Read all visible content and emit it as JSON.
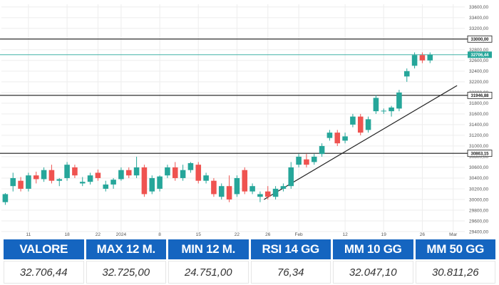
{
  "chart_data": {
    "type": "candlestick",
    "y_ticks": [
      "29400,00",
      "29600,00",
      "29800,00",
      "30000,00",
      "30200,00",
      "30400,00",
      "30600,00",
      "30800,00",
      "31000,00",
      "31200,00",
      "31400,00",
      "31600,00",
      "31800,00",
      "32000,00",
      "32200,00",
      "32400,00",
      "32600,00",
      "32800,00",
      "33000,00",
      "33200,00",
      "33400,00",
      "33600,00"
    ],
    "ylim": [
      29400,
      33650
    ],
    "x_ticks": [
      "11",
      "18",
      "22",
      "2024",
      "8",
      "15",
      "22",
      "26",
      "Feb",
      "12",
      "19",
      "26",
      "Mar"
    ],
    "x_tick_index": [
      3,
      8,
      12,
      15,
      20,
      25,
      30,
      34,
      38,
      44,
      49,
      54,
      58
    ],
    "x_count": 60,
    "levels": [
      {
        "value": 33000,
        "label": "33000,00",
        "kind": "black"
      },
      {
        "value": 32706.44,
        "label": "32706,44",
        "kind": "current"
      },
      {
        "value": 31946.88,
        "label": "31946,88",
        "kind": "black"
      },
      {
        "value": 30863.15,
        "label": "30863,15",
        "kind": "black"
      }
    ],
    "trendline": [
      {
        "i": 33.5,
        "v": 30000
      },
      {
        "i": 58.5,
        "v": 32130
      }
    ],
    "candles": [
      {
        "o": 29950,
        "h": 30120,
        "l": 29900,
        "c": 30100
      },
      {
        "o": 30250,
        "h": 30500,
        "l": 30150,
        "c": 30400
      },
      {
        "o": 30350,
        "h": 30420,
        "l": 30150,
        "c": 30200
      },
      {
        "o": 30200,
        "h": 30500,
        "l": 30150,
        "c": 30450
      },
      {
        "o": 30450,
        "h": 30520,
        "l": 30300,
        "c": 30380
      },
      {
        "o": 30380,
        "h": 30600,
        "l": 30330,
        "c": 30550
      },
      {
        "o": 30550,
        "h": 30650,
        "l": 30300,
        "c": 30350
      },
      {
        "o": 30350,
        "h": 30400,
        "l": 30250,
        "c": 30380
      },
      {
        "o": 30400,
        "h": 30700,
        "l": 30350,
        "c": 30650
      },
      {
        "o": 30600,
        "h": 30650,
        "l": 30400,
        "c": 30450
      },
      {
        "o": 30300,
        "h": 30420,
        "l": 30250,
        "c": 30330
      },
      {
        "o": 30330,
        "h": 30500,
        "l": 30280,
        "c": 30450
      },
      {
        "o": 30500,
        "h": 30560,
        "l": 30350,
        "c": 30400
      },
      {
        "o": 30200,
        "h": 30350,
        "l": 30150,
        "c": 30280
      },
      {
        "o": 30280,
        "h": 30400,
        "l": 30200,
        "c": 30370
      },
      {
        "o": 30380,
        "h": 30600,
        "l": 30350,
        "c": 30550
      },
      {
        "o": 30550,
        "h": 30600,
        "l": 30400,
        "c": 30450
      },
      {
        "o": 30450,
        "h": 30800,
        "l": 30400,
        "c": 30600
      },
      {
        "o": 30600,
        "h": 30650,
        "l": 30050,
        "c": 30100
      },
      {
        "o": 30150,
        "h": 30450,
        "l": 30100,
        "c": 30400
      },
      {
        "o": 30200,
        "h": 30450,
        "l": 30150,
        "c": 30430
      },
      {
        "o": 30450,
        "h": 30650,
        "l": 30400,
        "c": 30600
      },
      {
        "o": 30600,
        "h": 30700,
        "l": 30350,
        "c": 30400
      },
      {
        "o": 30400,
        "h": 30650,
        "l": 30350,
        "c": 30550
      },
      {
        "o": 30550,
        "h": 30700,
        "l": 30500,
        "c": 30680
      },
      {
        "o": 30650,
        "h": 30700,
        "l": 30300,
        "c": 30350
      },
      {
        "o": 30350,
        "h": 30500,
        "l": 30300,
        "c": 30450
      },
      {
        "o": 30350,
        "h": 30400,
        "l": 30050,
        "c": 30100
      },
      {
        "o": 30050,
        "h": 30300,
        "l": 30000,
        "c": 30250
      },
      {
        "o": 30250,
        "h": 30450,
        "l": 29950,
        "c": 30000
      },
      {
        "o": 30100,
        "h": 30450,
        "l": 30050,
        "c": 30400
      },
      {
        "o": 30550,
        "h": 30600,
        "l": 30100,
        "c": 30150
      },
      {
        "o": 30150,
        "h": 30300,
        "l": 30100,
        "c": 30250
      },
      {
        "o": 30050,
        "h": 30150,
        "l": 29950,
        "c": 30100
      },
      {
        "o": 30150,
        "h": 30250,
        "l": 30000,
        "c": 30050
      },
      {
        "o": 30050,
        "h": 30250,
        "l": 30000,
        "c": 30200
      },
      {
        "o": 30200,
        "h": 30300,
        "l": 30150,
        "c": 30250
      },
      {
        "o": 30250,
        "h": 30700,
        "l": 30200,
        "c": 30600
      },
      {
        "o": 30650,
        "h": 30850,
        "l": 30600,
        "c": 30800
      },
      {
        "o": 30750,
        "h": 30850,
        "l": 30600,
        "c": 30650
      },
      {
        "o": 30700,
        "h": 30850,
        "l": 30650,
        "c": 30800
      },
      {
        "o": 30850,
        "h": 31050,
        "l": 30800,
        "c": 31000
      },
      {
        "o": 31150,
        "h": 31300,
        "l": 31100,
        "c": 31250
      },
      {
        "o": 31250,
        "h": 31300,
        "l": 31000,
        "c": 31050
      },
      {
        "o": 31100,
        "h": 31250,
        "l": 31050,
        "c": 31180
      },
      {
        "o": 31400,
        "h": 31600,
        "l": 31350,
        "c": 31550
      },
      {
        "o": 31550,
        "h": 31600,
        "l": 31200,
        "c": 31250
      },
      {
        "o": 31300,
        "h": 31550,
        "l": 31250,
        "c": 31500
      },
      {
        "o": 31650,
        "h": 31950,
        "l": 31600,
        "c": 31900
      },
      {
        "o": 31650,
        "h": 31700,
        "l": 31600,
        "c": 31660
      },
      {
        "o": 31650,
        "h": 31750,
        "l": 31550,
        "c": 31720
      },
      {
        "o": 31700,
        "h": 32050,
        "l": 31650,
        "c": 32000
      },
      {
        "o": 32300,
        "h": 32450,
        "l": 32200,
        "c": 32400
      },
      {
        "o": 32500,
        "h": 32750,
        "l": 32450,
        "c": 32700
      },
      {
        "o": 32700,
        "h": 32750,
        "l": 32550,
        "c": 32600
      },
      {
        "o": 32600,
        "h": 32750,
        "l": 32550,
        "c": 32706
      }
    ]
  },
  "colors": {
    "up": "#26a69a",
    "down": "#ef5350",
    "grid": "#ededed",
    "level": "#1a1a1a",
    "current": "#26a69a",
    "header": "#1565c0"
  },
  "stats": {
    "headers": [
      "VALORE",
      "MAX 12 M.",
      "MIN 12 M.",
      "RSI 14 GG",
      "MM 10 GG",
      "MM 50 GG"
    ],
    "values": [
      "32.706,44",
      "32.725,00",
      "24.751,00",
      "76,34",
      "32.047,10",
      "30.811,26"
    ]
  }
}
